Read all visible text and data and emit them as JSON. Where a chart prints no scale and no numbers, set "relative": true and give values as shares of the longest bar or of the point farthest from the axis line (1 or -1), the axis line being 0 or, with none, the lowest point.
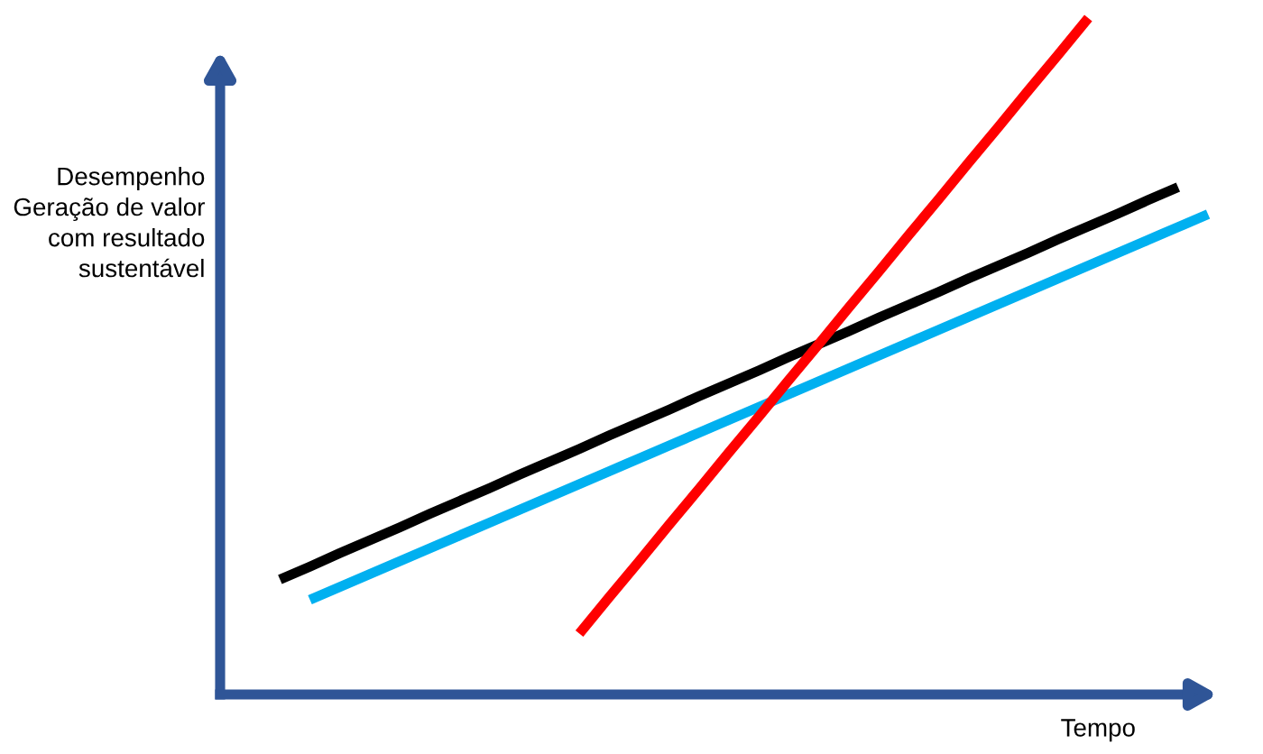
{
  "chart_data": {
    "type": "line",
    "relative": true,
    "xlabel": "Tempo",
    "ylabel": "Desempenho\nGeração de valor\ncom resultado\nsustentável",
    "categories": [
      null,
      null,
      null,
      null,
      null,
      null,
      null,
      null,
      null,
      null,
      null,
      null,
      null,
      null,
      null,
      null,
      null,
      null,
      null,
      null,
      null,
      null,
      null,
      null,
      null,
      null,
      null,
      null,
      null,
      null,
      null,
      null
    ],
    "series": [
      {
        "color": "#000000",
        "values": [
          0.17,
          0.189,
          0.209,
          0.228,
          0.247,
          0.267,
          0.286,
          0.305,
          0.325,
          0.344,
          0.363,
          0.383,
          0.402,
          0.421,
          0.441,
          0.46,
          0.479,
          0.499,
          0.518,
          0.537,
          0.557,
          0.576,
          0.595,
          0.615,
          0.634,
          0.653,
          0.673,
          0.692,
          0.711,
          0.731,
          0.75,
          null
        ]
      },
      {
        "color": "#00b0f0",
        "values": [
          null,
          0.14,
          0.159,
          0.178,
          0.197,
          0.216,
          0.235,
          0.254,
          0.273,
          0.292,
          0.311,
          0.33,
          0.349,
          0.368,
          0.387,
          0.406,
          0.425,
          0.444,
          0.463,
          0.482,
          0.501,
          0.52,
          0.539,
          0.558,
          0.577,
          0.596,
          0.615,
          0.634,
          0.653,
          0.672,
          0.691,
          0.71
        ]
      },
      {
        "color": "#ff0000",
        "values": [
          null,
          null,
          null,
          null,
          null,
          null,
          null,
          null,
          null,
          null,
          0.09,
          0.144,
          0.197,
          0.251,
          0.304,
          0.358,
          0.411,
          0.465,
          0.518,
          0.572,
          0.625,
          0.679,
          0.732,
          0.786,
          0.839,
          0.893,
          0.946,
          1.0,
          null,
          null,
          null,
          null
        ]
      }
    ],
    "legend": false,
    "marker": "none",
    "line_style": "solid"
  }
}
